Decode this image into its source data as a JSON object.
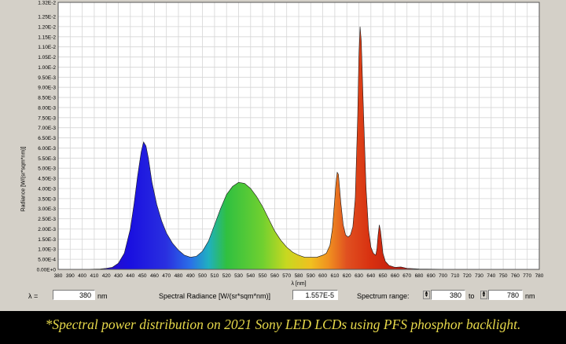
{
  "chart_data": {
    "type": "area",
    "title": "",
    "xlabel": "λ [nm]",
    "ylabel": "Radiance [W/(sr*sqm*nm)]",
    "xlim": [
      380,
      780
    ],
    "ylim": [
      0,
      0.0132
    ],
    "grid": true,
    "y_ticks": [
      "0.00E+0",
      "5.00E-4",
      "1.00E-3",
      "1.50E-3",
      "2.00E-3",
      "2.50E-3",
      "3.00E-3",
      "3.50E-3",
      "4.00E-3",
      "4.50E-3",
      "5.00E-3",
      "5.50E-3",
      "6.00E-3",
      "6.50E-3",
      "7.00E-3",
      "7.50E-3",
      "8.00E-3",
      "8.50E-3",
      "9.00E-3",
      "9.50E-3",
      "1.00E-2",
      "1.05E-2",
      "1.10E-2",
      "1.15E-2",
      "1.20E-2",
      "1.25E-2",
      "1.32E-2"
    ],
    "x_ticks": [
      "380",
      "390",
      "400",
      "410",
      "420",
      "430",
      "440",
      "450",
      "460",
      "470",
      "480",
      "490",
      "500",
      "510",
      "520",
      "530",
      "540",
      "550",
      "560",
      "570",
      "580",
      "590",
      "600",
      "610",
      "620",
      "630",
      "640",
      "650",
      "660",
      "670",
      "680",
      "690",
      "700",
      "710",
      "720",
      "730",
      "740",
      "750",
      "760",
      "770",
      "780"
    ],
    "series": [
      {
        "x": [
          380,
          400,
          415,
          420,
          425,
          430,
          435,
          440,
          443,
          446,
          449,
          451,
          453,
          455,
          458,
          462,
          466,
          470,
          475,
          480,
          485,
          490,
          495,
          500,
          505,
          510,
          515,
          520,
          525,
          530,
          535,
          540,
          545,
          550,
          555,
          560,
          565,
          570,
          575,
          580,
          585,
          590,
          595,
          600,
          603,
          606,
          608,
          610,
          611,
          612,
          613,
          615,
          617,
          619,
          621,
          623,
          625,
          627,
          629,
          630,
          631,
          632,
          634,
          636,
          638,
          640,
          642,
          644,
          645,
          646,
          647,
          648,
          650,
          652,
          655,
          660,
          665,
          670,
          680,
          700,
          720,
          740,
          760,
          780
        ],
        "y": [
          0,
          0,
          2e-05,
          5e-05,
          0.0001,
          0.0003,
          0.0008,
          0.002,
          0.0032,
          0.0046,
          0.0058,
          0.0063,
          0.0061,
          0.0055,
          0.0043,
          0.0032,
          0.0024,
          0.0018,
          0.0013,
          0.00095,
          0.0007,
          0.0006,
          0.00065,
          0.0009,
          0.0014,
          0.0022,
          0.003,
          0.0037,
          0.0041,
          0.0043,
          0.00425,
          0.004,
          0.0036,
          0.0031,
          0.0025,
          0.0019,
          0.00145,
          0.0011,
          0.00085,
          0.0007,
          0.0006,
          0.0006,
          0.0006,
          0.0007,
          0.0008,
          0.0012,
          0.002,
          0.0035,
          0.0043,
          0.0048,
          0.0047,
          0.0033,
          0.0022,
          0.0017,
          0.0016,
          0.0017,
          0.0021,
          0.0035,
          0.0075,
          0.0105,
          0.012,
          0.0113,
          0.0075,
          0.004,
          0.002,
          0.0011,
          0.0008,
          0.0007,
          0.001,
          0.0017,
          0.0022,
          0.0019,
          0.0008,
          0.0004,
          0.0002,
          0.0001,
          0.00012,
          5e-05,
          2e-05,
          1e-05,
          0,
          0,
          0,
          0
        ]
      }
    ]
  },
  "status": {
    "lambda_label": "λ =",
    "lambda_value": "380",
    "lambda_unit": "nm",
    "radiance_label": "Spectral Radiance [W/(sr*sqm*nm)]",
    "radiance_value": "1.557E-5",
    "range_label": "Spectrum range:",
    "range_from": "380",
    "range_to_label": "to",
    "range_to": "780",
    "range_unit": "nm"
  },
  "caption": "*Spectral power distribution on 2021 Sony LED LCDs using PFS phosphor backlight.",
  "colors": {
    "background": "#000000",
    "panel": "#d4d0c8",
    "caption": "#e6d84a",
    "plot_bg": "#ffffff",
    "grid": "#d6d6d6"
  }
}
